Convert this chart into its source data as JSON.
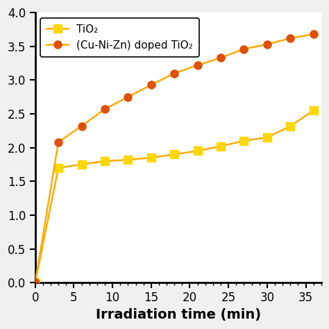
{
  "x": [
    0,
    3,
    6,
    9,
    12,
    15,
    18,
    21,
    24,
    27,
    30,
    33,
    36
  ],
  "tio2": [
    0.0,
    1.7,
    1.75,
    1.8,
    1.82,
    1.85,
    1.9,
    1.95,
    2.02,
    2.1,
    2.15,
    2.32,
    2.55
  ],
  "doped_tio2": [
    0.0,
    2.08,
    2.32,
    2.57,
    2.75,
    2.93,
    3.1,
    3.22,
    3.33,
    3.46,
    3.53,
    3.62,
    3.68
  ],
  "tio2_marker_color": "#FFD700",
  "doped_marker_color": "#E05000",
  "line_color": "#FFAA00",
  "xlabel": "Irradiation time (min)",
  "tio2_label": "TiO₂",
  "doped_label": "(Cu-Ni-Zn) doped TiO₂",
  "xlim": [
    0,
    37
  ],
  "ylim": [
    0.0,
    4.0
  ],
  "xticks": [
    0,
    5,
    10,
    15,
    20,
    25,
    30,
    35
  ],
  "yticks": [
    0.0,
    0.5,
    1.0,
    1.5,
    2.0,
    2.5,
    3.0,
    3.5,
    4.0
  ],
  "background_color": "#f0f0f0",
  "axes_bg": "#ffffff",
  "marker_size": 8,
  "linewidth": 1.8,
  "xlabel_fontsize": 14,
  "tick_labelsize": 12,
  "legend_fontsize": 11
}
